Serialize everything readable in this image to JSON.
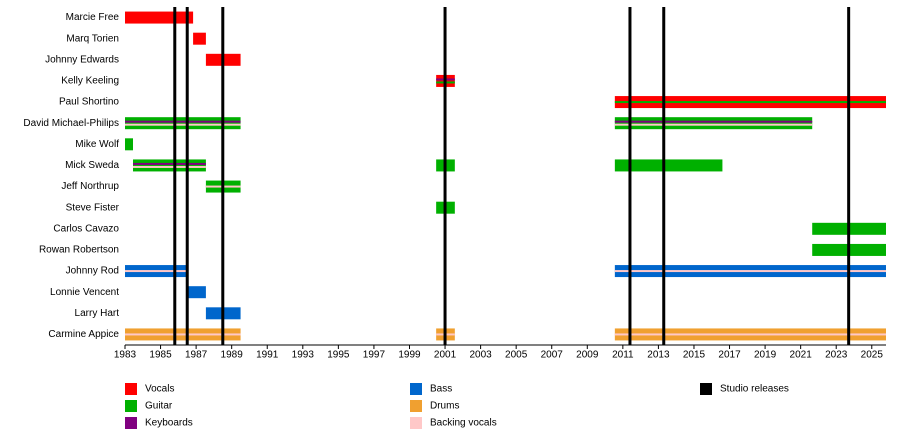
{
  "chart_data": {
    "type": "timeline",
    "xlim": [
      1983,
      2025.8
    ],
    "xticks": [
      1983,
      1985,
      1987,
      1989,
      1991,
      1993,
      1995,
      1997,
      1999,
      2001,
      2003,
      2005,
      2007,
      2009,
      2011,
      2013,
      2015,
      2017,
      2019,
      2021,
      2023,
      2025
    ],
    "roles": [
      {
        "name": "Vocals",
        "color": "#ff0000"
      },
      {
        "name": "Guitar",
        "color": "#00b000"
      },
      {
        "name": "Keyboards",
        "color": "#800080"
      },
      {
        "name": "Bass",
        "color": "#0066cc"
      },
      {
        "name": "Drums",
        "color": "#f0a030"
      },
      {
        "name": "Backing vocals",
        "color": "#ffc8c8"
      }
    ],
    "releases_label": "Studio releases",
    "releases_color": "#000000",
    "releases": [
      1985.8,
      1986.5,
      1988.5,
      2001,
      2011.4,
      2013.3,
      2023.7
    ],
    "members": [
      {
        "name": "Marcie Free",
        "periods": [
          {
            "start": 1983,
            "end": 1986.83,
            "roles": [
              "Vocals"
            ]
          }
        ]
      },
      {
        "name": "Marq Torien",
        "periods": [
          {
            "start": 1986.83,
            "end": 1987.55,
            "roles": [
              "Vocals"
            ]
          }
        ]
      },
      {
        "name": "Johnny Edwards",
        "periods": [
          {
            "start": 1987.55,
            "end": 1989.5,
            "roles": [
              "Vocals"
            ]
          }
        ]
      },
      {
        "name": "Kelly Keeling",
        "periods": [
          {
            "start": 2000.5,
            "end": 2001.55,
            "roles": [
              "Vocals",
              "Keyboards",
              "Guitar"
            ]
          }
        ]
      },
      {
        "name": "Paul Shortino",
        "periods": [
          {
            "start": 2010.55,
            "end": 2025.8,
            "roles": [
              "Vocals",
              "Guitar"
            ]
          }
        ]
      },
      {
        "name": "David Michael-Philips",
        "periods": [
          {
            "start": 1983,
            "end": 1989.5,
            "roles": [
              "Guitar",
              "Keyboards",
              "Backing vocals"
            ]
          },
          {
            "start": 2010.55,
            "end": 2021.65,
            "roles": [
              "Guitar",
              "Keyboards",
              "Backing vocals"
            ]
          }
        ]
      },
      {
        "name": "Mike Wolf",
        "periods": [
          {
            "start": 1983,
            "end": 1983.45,
            "roles": [
              "Guitar"
            ]
          }
        ]
      },
      {
        "name": "Mick Sweda",
        "periods": [
          {
            "start": 1983.45,
            "end": 1987.55,
            "roles": [
              "Guitar",
              "Keyboards",
              "Backing vocals"
            ]
          },
          {
            "start": 2000.5,
            "end": 2001.55,
            "roles": [
              "Guitar"
            ]
          },
          {
            "start": 2010.55,
            "end": 2016.6,
            "roles": [
              "Guitar"
            ]
          }
        ]
      },
      {
        "name": "Jeff Northrup",
        "periods": [
          {
            "start": 1987.55,
            "end": 1989.5,
            "roles": [
              "Guitar",
              "Backing vocals"
            ]
          }
        ]
      },
      {
        "name": "Steve Fister",
        "periods": [
          {
            "start": 2000.5,
            "end": 2001.55,
            "roles": [
              "Guitar"
            ]
          }
        ]
      },
      {
        "name": "Carlos Cavazo",
        "periods": [
          {
            "start": 2021.65,
            "end": 2025.8,
            "roles": [
              "Guitar"
            ]
          }
        ]
      },
      {
        "name": "Rowan Robertson",
        "periods": [
          {
            "start": 2021.65,
            "end": 2025.8,
            "roles": [
              "Guitar"
            ]
          }
        ]
      },
      {
        "name": "Johnny Rod",
        "periods": [
          {
            "start": 1983,
            "end": 1986.5,
            "roles": [
              "Bass",
              "Backing vocals"
            ]
          },
          {
            "start": 2010.55,
            "end": 2025.8,
            "roles": [
              "Bass",
              "Backing vocals"
            ]
          }
        ]
      },
      {
        "name": "Lonnie Vencent",
        "periods": [
          {
            "start": 1986.5,
            "end": 1987.55,
            "roles": [
              "Bass"
            ]
          }
        ]
      },
      {
        "name": "Larry Hart",
        "periods": [
          {
            "start": 1987.55,
            "end": 1989.5,
            "roles": [
              "Bass"
            ]
          }
        ]
      },
      {
        "name": "Carmine Appice",
        "periods": [
          {
            "start": 1983,
            "end": 1989.5,
            "roles": [
              "Drums",
              "Backing vocals"
            ]
          },
          {
            "start": 2000.5,
            "end": 2001.55,
            "roles": [
              "Drums",
              "Backing vocals"
            ]
          },
          {
            "start": 2010.55,
            "end": 2025.8,
            "roles": [
              "Drums",
              "Backing vocals"
            ]
          }
        ]
      }
    ]
  }
}
